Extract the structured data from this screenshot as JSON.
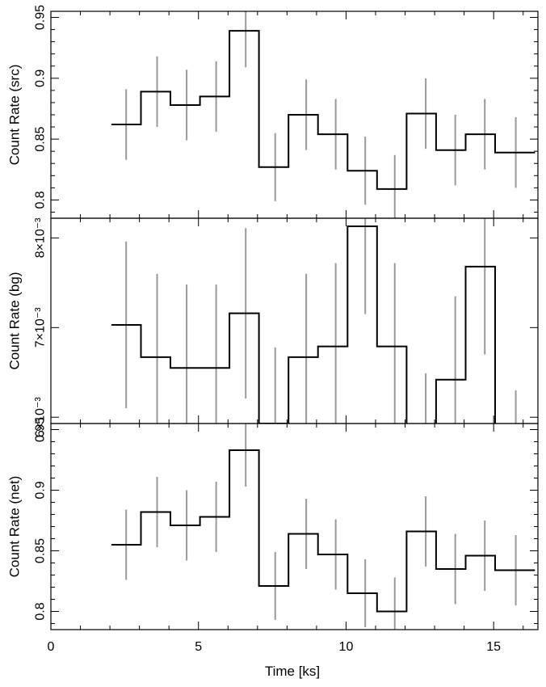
{
  "chart_data": {
    "type": "line",
    "style": "step light curve with error bars",
    "xlabel": "Time [ks]",
    "xlim": [
      0,
      16.5
    ],
    "x_ticks": [
      0,
      5,
      10,
      15
    ],
    "x_tick_labels": [
      "0",
      "5",
      "10",
      "15"
    ],
    "bin_centers": [
      2.55,
      3.6,
      4.6,
      5.6,
      6.6,
      7.6,
      8.65,
      9.65,
      10.65,
      11.65,
      12.7,
      13.7,
      14.7,
      15.75
    ],
    "bin_edges": [
      2.05,
      3.05,
      4.05,
      5.05,
      6.05,
      7.05,
      8.05,
      9.05,
      10.05,
      11.05,
      12.05,
      13.05,
      14.05,
      15.05,
      16.4
    ],
    "line_color": "#000000",
    "error_color": "#999999",
    "panels": [
      {
        "name": "src",
        "ylabel": "Count Rate (src)",
        "ylim": [
          0.785,
          0.955
        ],
        "y_ticks": [
          0.8,
          0.85,
          0.9,
          0.95
        ],
        "y_tick_labels": [
          "0.8",
          "0.85",
          "0.9",
          "0.95"
        ],
        "values": [
          0.862,
          0.889,
          0.878,
          0.885,
          0.939,
          0.827,
          0.87,
          0.854,
          0.824,
          0.809,
          0.871,
          0.841,
          0.854,
          0.839
        ],
        "errors": [
          0.029,
          0.029,
          0.029,
          0.029,
          0.03,
          0.028,
          0.029,
          0.029,
          0.028,
          0.028,
          0.029,
          0.029,
          0.029,
          0.029
        ]
      },
      {
        "name": "bg",
        "ylabel": "Count Rate (bg)",
        "ylim": [
          0.00593,
          0.00822
        ],
        "y_ticks": [
          0.006,
          0.007,
          0.008
        ],
        "y_tick_labels": [
          "6×10⁻³",
          "7×10⁻³",
          "8×10⁻³"
        ],
        "values": [
          0.00703,
          0.00667,
          0.00655,
          0.00655,
          0.00716,
          0.00593,
          0.00667,
          0.00679,
          0.00813,
          0.00679,
          0.00563,
          0.00642,
          0.00768,
          0.00575
        ],
        "errors": [
          0.00093,
          0.00093,
          0.00093,
          0.00093,
          0.00095,
          0.00085,
          0.00093,
          0.00093,
          0.00098,
          0.00093,
          0.00086,
          0.00093,
          0.00098,
          0.00055
        ]
      },
      {
        "name": "net",
        "ylabel": "Count Rate (net)",
        "ylim": [
          0.785,
          0.955
        ],
        "y_ticks": [
          0.8,
          0.85,
          0.9,
          0.95
        ],
        "y_tick_labels": [
          "0.8",
          "0.85",
          "0.9",
          "0.95"
        ],
        "values": [
          0.855,
          0.882,
          0.871,
          0.878,
          0.933,
          0.821,
          0.864,
          0.847,
          0.815,
          0.8,
          0.866,
          0.835,
          0.846,
          0.834
        ],
        "errors": [
          0.029,
          0.029,
          0.029,
          0.029,
          0.03,
          0.028,
          0.029,
          0.029,
          0.028,
          0.028,
          0.029,
          0.029,
          0.029,
          0.029
        ]
      }
    ]
  }
}
